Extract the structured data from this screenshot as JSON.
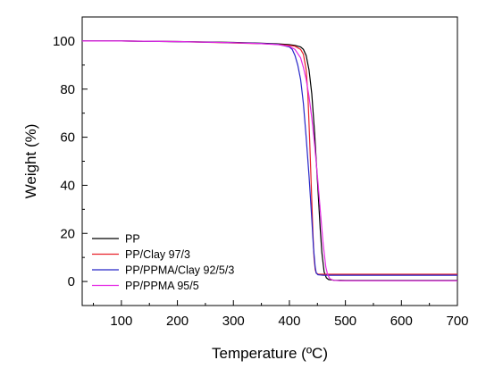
{
  "chart_data": {
    "type": "line",
    "title": "",
    "xlabel": "Temperature (ºC)",
    "ylabel": "Weight (%)",
    "xlim": [
      30,
      700
    ],
    "ylim": [
      -10,
      110
    ],
    "xticks": [
      100,
      200,
      300,
      400,
      500,
      600,
      700
    ],
    "yticks": [
      0,
      20,
      40,
      60,
      80,
      100
    ],
    "grid": false,
    "legend_position": "bottom-left",
    "series": [
      {
        "name": "PP",
        "color": "#000000",
        "x": [
          30,
          100,
          200,
          300,
          350,
          380,
          400,
          410,
          420,
          425,
          430,
          435,
          440,
          445,
          450,
          455,
          458,
          462,
          466,
          470,
          480,
          500,
          600,
          700
        ],
        "y": [
          100,
          100,
          99.8,
          99.4,
          99.1,
          98.8,
          98.5,
          98.2,
          97.5,
          96.5,
          94,
          88,
          78,
          62,
          42,
          22,
          12,
          4,
          1.5,
          0.8,
          0.5,
          0.4,
          0.4,
          0.4
        ]
      },
      {
        "name": "PP/Clay 97/3",
        "color": "#e8202a",
        "x": [
          30,
          100,
          200,
          300,
          350,
          380,
          400,
          410,
          420,
          425,
          430,
          433,
          436,
          439,
          442,
          444,
          446,
          448,
          452,
          460,
          500,
          600,
          700
        ],
        "y": [
          100,
          100,
          99.7,
          99.2,
          98.9,
          98.6,
          98.2,
          97.8,
          96.5,
          94.5,
          88,
          78,
          60,
          40,
          20,
          10,
          5,
          3.5,
          3,
          3,
          3,
          3,
          3
        ]
      },
      {
        "name": "PP/PPMA/Clay 92/5/3",
        "color": "#2626c8",
        "x": [
          30,
          100,
          200,
          300,
          350,
          380,
          400,
          405,
          410,
          415,
          420,
          425,
          430,
          435,
          440,
          443,
          446,
          448,
          451,
          455,
          460,
          500,
          600,
          700
        ],
        "y": [
          100,
          100,
          99.7,
          99.3,
          99,
          98.6,
          97.5,
          96.5,
          94,
          90,
          84,
          74,
          60,
          44,
          26,
          14,
          6,
          3.5,
          2.8,
          2.7,
          2.6,
          2.6,
          2.6,
          2.6
        ]
      },
      {
        "name": "PP/PPMA 95/5",
        "color": "#e428e4",
        "x": [
          30,
          100,
          200,
          300,
          350,
          380,
          400,
          410,
          420,
          425,
          430,
          435,
          440,
          445,
          450,
          455,
          460,
          465,
          468,
          472,
          478,
          490,
          600,
          700
        ],
        "y": [
          100,
          100,
          99.8,
          99.3,
          98.9,
          98.5,
          97.8,
          96.5,
          93,
          89,
          84,
          77,
          68,
          57,
          44,
          30,
          16,
          6,
          3,
          1.2,
          0.5,
          0.3,
          0.3,
          0.3
        ]
      }
    ]
  }
}
